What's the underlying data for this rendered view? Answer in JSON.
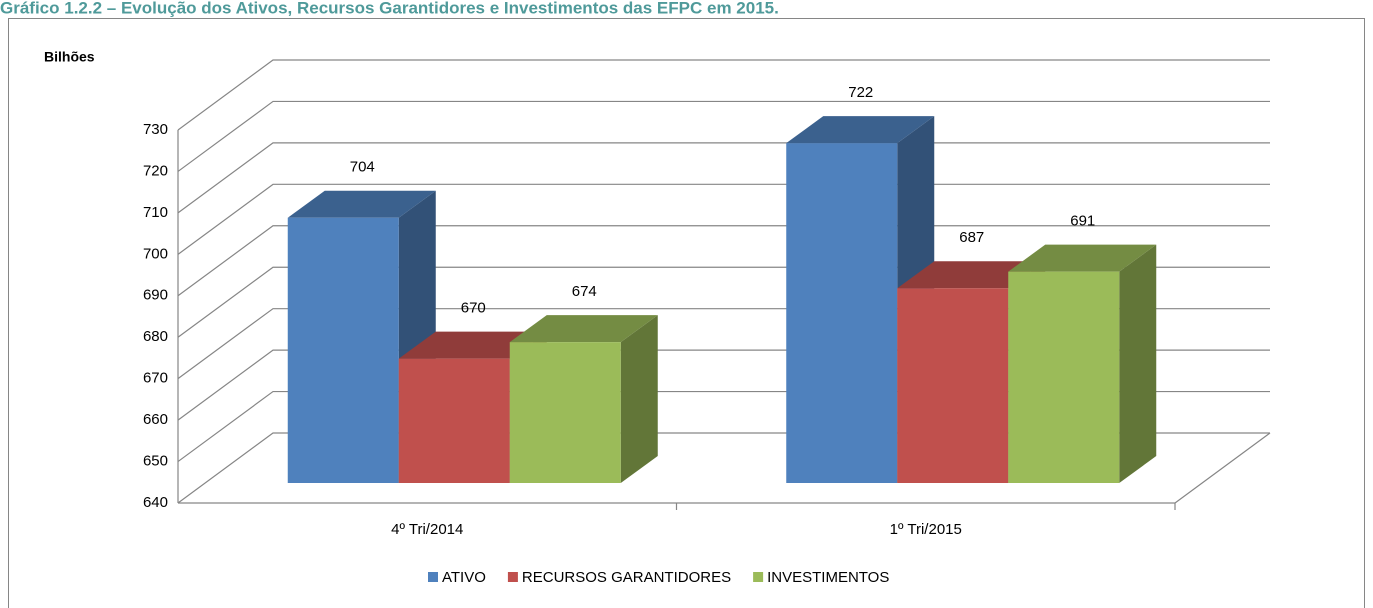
{
  "chart_data": {
    "type": "bar3d",
    "title": "Gráfico 1.2.2 – Evolução dos Ativos, Recursos Garantidores e Investimentos das EFPC em 2015.",
    "y_label": "Bilhões",
    "categories": [
      "4º Tri/2014",
      "1º Tri/2015"
    ],
    "series": [
      {
        "name": "ATIVO",
        "color": "#4f81bd",
        "values": [
          704,
          722
        ]
      },
      {
        "name": "RECURSOS GARANTIDORES",
        "color": "#c0504d",
        "values": [
          670,
          687
        ]
      },
      {
        "name": "INVESTIMENTOS",
        "color": "#9bbb59",
        "values": [
          674,
          691
        ]
      }
    ],
    "ylim": [
      640,
      730
    ],
    "yticks": [
      640,
      650,
      660,
      670,
      680,
      690,
      700,
      710,
      720,
      730
    ],
    "grid": true,
    "legend": "bottom"
  }
}
